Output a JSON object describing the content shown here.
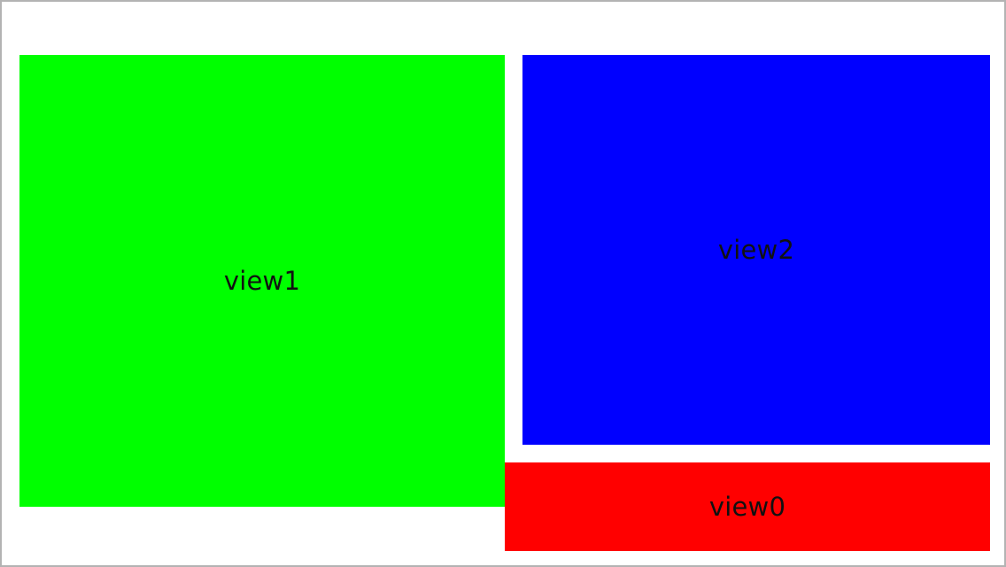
{
  "views": {
    "view1": {
      "label": "view1",
      "color": "#00ff00"
    },
    "view2": {
      "label": "view2",
      "color": "#0000ff"
    },
    "view0": {
      "label": "view0",
      "color": "#ff0000"
    }
  },
  "screen": {
    "background": "#ffffff",
    "border_color": "#b3b3b3"
  }
}
